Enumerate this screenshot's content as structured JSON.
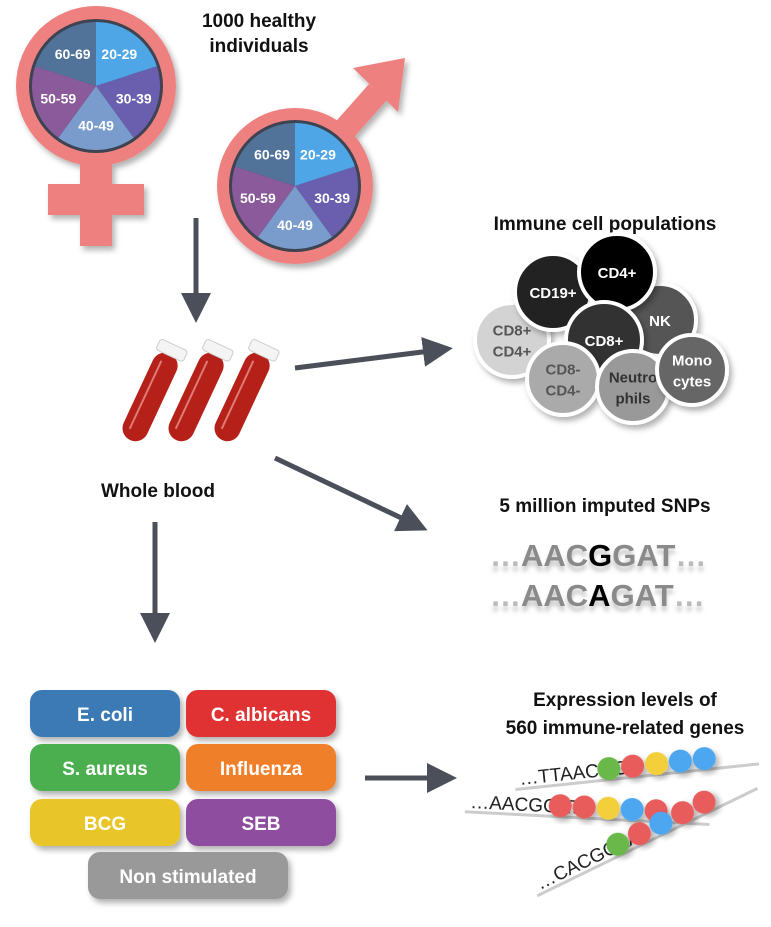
{
  "title": "1000 healthy individuals",
  "title_lines": [
    "1000 healthy",
    "individuals"
  ],
  "age_groups": [
    "20-29",
    "30-39",
    "40-49",
    "50-59",
    "60-69"
  ],
  "age_colors": [
    "#4ea6e6",
    "#6a5fae",
    "#7a9ccc",
    "#8a5a9a",
    "#51739a"
  ],
  "symbol_color": "#ee8080",
  "arrow_color": "#4a4f5a",
  "blood_label": "Whole blood",
  "cells": {
    "title": "Immune cell populations",
    "items": [
      {
        "id": "cd8-cd4-double-pos",
        "lines": [
          "CD8+",
          "CD4+"
        ],
        "fill": "#d3d3d3",
        "text": "#555555"
      },
      {
        "id": "cd19",
        "lines": [
          "CD19+"
        ],
        "fill": "#222222",
        "text": "#ffffff"
      },
      {
        "id": "nk",
        "lines": [
          "NK"
        ],
        "fill": "#555555",
        "text": "#ffffff"
      },
      {
        "id": "cd4",
        "lines": [
          "CD4+"
        ],
        "fill": "#000000",
        "text": "#ffffff"
      },
      {
        "id": "cd8",
        "lines": [
          "CD8+"
        ],
        "fill": "#333333",
        "text": "#ffffff"
      },
      {
        "id": "cd8-cd4-double-neg",
        "lines": [
          "CD8-",
          "CD4-"
        ],
        "fill": "#aaaaaa",
        "text": "#555555"
      },
      {
        "id": "neutrophils",
        "lines": [
          "Neutro",
          "phils"
        ],
        "fill": "#999999",
        "text": "#333333"
      },
      {
        "id": "monocytes",
        "lines": [
          "Mono",
          "cytes"
        ],
        "fill": "#666666",
        "text": "#ffffff"
      }
    ]
  },
  "snps": {
    "title": "5 million imputed SNPs",
    "seq1": {
      "pre": "AAC",
      "alt": "G",
      "post": "GAT"
    },
    "seq2": {
      "pre": "AAC",
      "alt": "A",
      "post": "GAT"
    },
    "ellipsis": "…"
  },
  "stimuli": [
    {
      "label": "E. coli",
      "color": "#3a7ab5"
    },
    {
      "label": "C. albicans",
      "color": "#e03030"
    },
    {
      "label": "S. aureus",
      "color": "#4caf50"
    },
    {
      "label": "Influenza",
      "color": "#f07f2a"
    },
    {
      "label": "BCG",
      "color": "#e8c62a"
    },
    {
      "label": "SEB",
      "color": "#8e4e9e"
    },
    {
      "label": "Non stimulated",
      "color": "#999999"
    }
  ],
  "expression": {
    "title_lines": [
      "Expression levels of",
      "560 immune-related genes"
    ],
    "strands": [
      {
        "seq": "…TTAACGG",
        "beads": [
          "#6ab84a",
          "#e85c5c",
          "#f2cf3a",
          "#4ea6f0",
          "#4ea6f0"
        ]
      },
      {
        "seq": "…AACGGAT",
        "beads": [
          "#e85c5c",
          "#e85c5c",
          "#f2cf3a",
          "#4ea6f0",
          "#e85c5c"
        ]
      },
      {
        "seq": "…CACGCAA",
        "beads": [
          "#6ab84a",
          "#e85c5c",
          "#4ea6f0",
          "#e85c5c",
          "#e85c5c"
        ]
      }
    ]
  }
}
